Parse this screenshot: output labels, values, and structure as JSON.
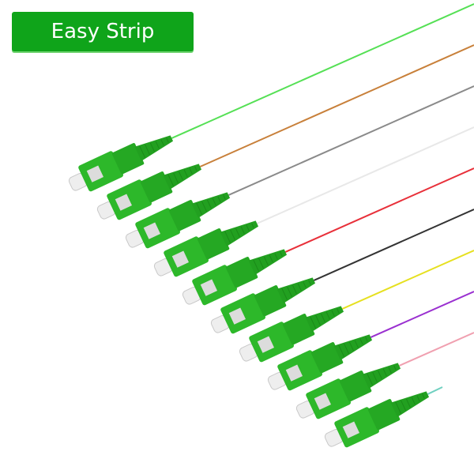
{
  "badge": {
    "label": "Easy Strip",
    "color": "#0fa41a"
  },
  "connector_color": "#2db82a",
  "connector_count": 10,
  "fiber_colors": [
    "#55e055",
    "#c8803a",
    "#8a8a8a",
    "#e8e8e8",
    "#e8303a",
    "#333333",
    "#e6e020",
    "#9a30d0",
    "#f0a0b0",
    "#70d0c0"
  ]
}
